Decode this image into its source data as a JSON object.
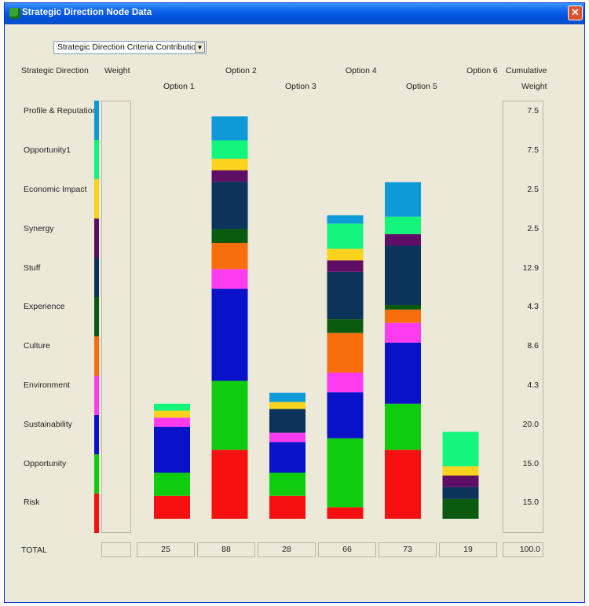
{
  "window": {
    "title": "Strategic Direction Node Data",
    "close_glyph": "✕"
  },
  "criteria_dropdown": {
    "selected": "Strategic Direction Criteria Contribution",
    "arrow_glyph": "▼"
  },
  "headers": {
    "strategic_direction": "Strategic Direction",
    "weight": "Weight",
    "cumulative_line1": "Cumulative",
    "cumulative_line2": "Weight"
  },
  "options": [
    "Option 1",
    "Option 2",
    "Option 3",
    "Option 4",
    "Option 5",
    "Option 6"
  ],
  "criteria": [
    {
      "label": "Profile & Reputation",
      "color": "#0e9ad6",
      "cumulative": "7.5"
    },
    {
      "label": "Opportunity1",
      "color": "#13f57b",
      "cumulative": "7.5"
    },
    {
      "label": "Economic Impact",
      "color": "#fcd31c",
      "cumulative": "2.5"
    },
    {
      "label": "Synergy",
      "color": "#5e0e64",
      "cumulative": "2.5"
    },
    {
      "label": "Stuff",
      "color": "#0c3359",
      "cumulative": "12.9"
    },
    {
      "label": "Experience",
      "color": "#0a5b10",
      "cumulative": "4.3"
    },
    {
      "label": "Culture",
      "color": "#f86d0c",
      "cumulative": "8.6"
    },
    {
      "label": "Environment",
      "color": "#ff3bf0",
      "cumulative": "4.3"
    },
    {
      "label": "Sustainability",
      "color": "#0a12c9",
      "cumulative": "20.0"
    },
    {
      "label": "Opportunity",
      "color": "#0fcc0f",
      "cumulative": "15.0"
    },
    {
      "label": "Risk",
      "color": "#f80f0f",
      "cumulative": "15.0"
    }
  ],
  "total": {
    "label": "TOTAL",
    "weight": "",
    "values": [
      "25",
      "88",
      "28",
      "66",
      "73",
      "19"
    ],
    "cumulative": "100.0"
  },
  "chart_data": {
    "type": "bar",
    "stacked": true,
    "categories": [
      "Option 1",
      "Option 2",
      "Option 3",
      "Option 4",
      "Option 5",
      "Option 6"
    ],
    "series": [
      {
        "name": "Risk",
        "color": "#f80f0f",
        "values": [
          5,
          15,
          5,
          2.5,
          15,
          0
        ]
      },
      {
        "name": "Opportunity",
        "color": "#0fcc0f",
        "values": [
          5,
          15,
          5,
          15,
          10,
          0
        ]
      },
      {
        "name": "Sustainability",
        "color": "#0a12c9",
        "values": [
          10,
          20,
          6.7,
          10,
          13.3,
          0
        ]
      },
      {
        "name": "Environment",
        "color": "#ff3bf0",
        "values": [
          2,
          4.3,
          2,
          4.3,
          4.3,
          0
        ]
      },
      {
        "name": "Culture",
        "color": "#f86d0c",
        "values": [
          0,
          5.7,
          0,
          8.6,
          2.9,
          0
        ]
      },
      {
        "name": "Experience",
        "color": "#0a5b10",
        "values": [
          0,
          3,
          0,
          3,
          1,
          4.3
        ]
      },
      {
        "name": "Stuff",
        "color": "#0c3359",
        "values": [
          0,
          10.3,
          5.2,
          10.3,
          12.9,
          2.6
        ]
      },
      {
        "name": "Synergy",
        "color": "#5e0e64",
        "values": [
          0,
          2.5,
          0,
          2.5,
          2.5,
          2.5
        ]
      },
      {
        "name": "Economic Impact",
        "color": "#fcd31c",
        "values": [
          1.5,
          2.5,
          1.5,
          2.5,
          0,
          2
        ]
      },
      {
        "name": "Opportunity1",
        "color": "#13f57b",
        "values": [
          1.5,
          4,
          0,
          5.5,
          3.8,
          7.5
        ]
      },
      {
        "name": "Profile & Reputation",
        "color": "#0e9ad6",
        "values": [
          0,
          5.2,
          2,
          1.8,
          7.5,
          0
        ]
      }
    ],
    "totals": [
      25,
      88,
      28,
      66,
      73,
      19
    ],
    "ylim": [
      0,
      100
    ]
  }
}
